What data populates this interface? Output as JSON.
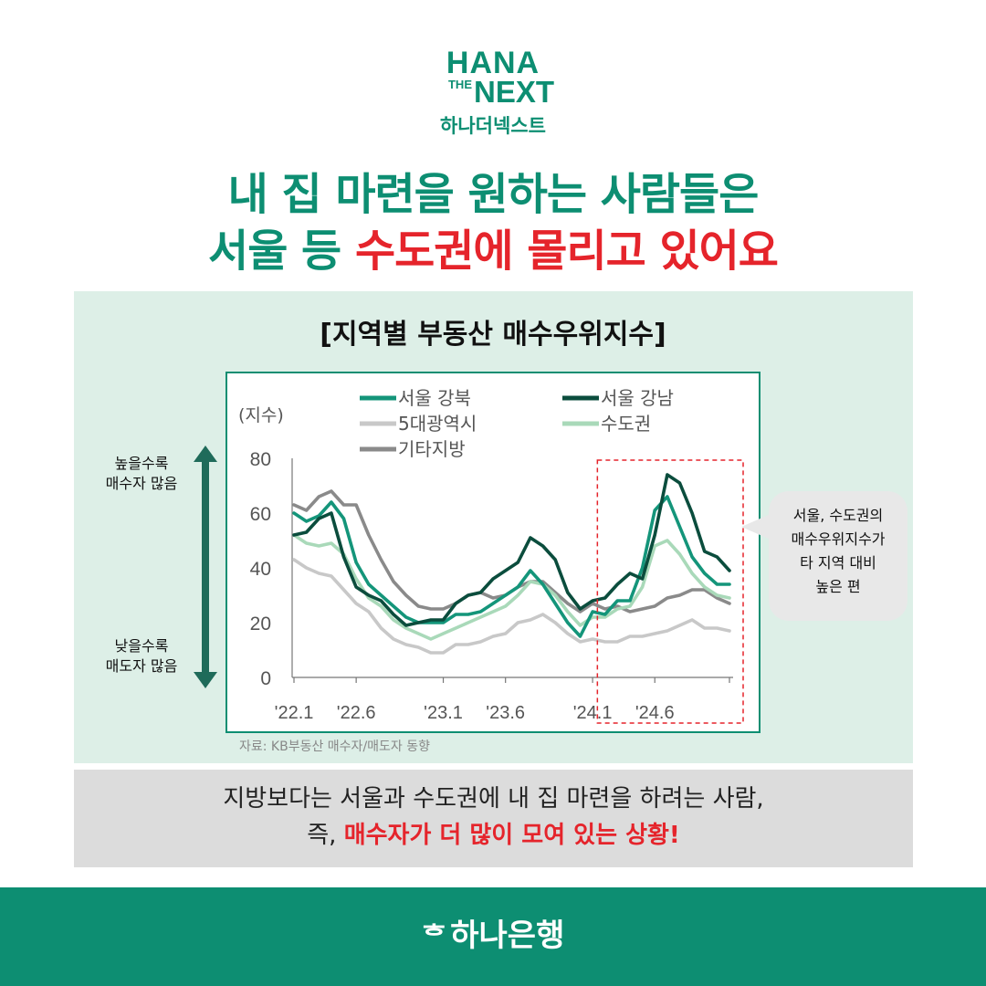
{
  "logo": {
    "line1": "HANA",
    "line2_small": "THE",
    "line2": "NEXT",
    "line3": "하나더넥스트"
  },
  "headline": {
    "line1": "내 집 마련을 원하는 사람들은",
    "line2_prefix": "서울 등 ",
    "line2_highlight": "수도권에 몰리고 있어요"
  },
  "chart_title": "[지역별 부동산 매수우위지수]",
  "side": {
    "top": [
      "높을수록",
      "매수자 많음"
    ],
    "bottom": [
      "낮을수록",
      "매도자 많음"
    ]
  },
  "bubble": [
    "서울, 수도권의",
    "매수우위지수가",
    "타 지역 대비",
    "높은 편"
  ],
  "source": "자료: KB부동산 매수자/매도자 동향",
  "summary": {
    "line1": "지방보다는 서울과 수도권에 내 집 마련을 하려는 사람,",
    "line2_prefix": "즉, ",
    "line2_highlight": "매수자가 더 많이 모여 있는 상황!"
  },
  "footer": {
    "brand_mark": "ᄒ",
    "brand": "하나은행"
  },
  "colors": {
    "brand_green": "#0d8e72",
    "red": "#e5242b",
    "seoul_gangbuk": "#14957a",
    "seoul_gangnam": "#0b4d3d",
    "metro5": "#c8c8c8",
    "capital": "#a9d9b9",
    "others": "#8a8a8a"
  },
  "chart_data": {
    "type": "line",
    "ylabel": "(지수)",
    "ylim": [
      0,
      80
    ],
    "yticks": [
      0,
      20,
      40,
      60,
      80
    ],
    "x": [
      "'22.1",
      "'22.2",
      "'22.3",
      "'22.4",
      "'22.5",
      "'22.6",
      "'22.7",
      "'22.8",
      "'22.9",
      "'22.10",
      "'22.11",
      "'22.12",
      "'23.1",
      "'23.2",
      "'23.3",
      "'23.4",
      "'23.5",
      "'23.6",
      "'23.7",
      "'23.8",
      "'23.9",
      "'23.10",
      "'23.11",
      "'23.12",
      "'24.1",
      "'24.2",
      "'24.3",
      "'24.4",
      "'24.5",
      "'24.6",
      "'24.7",
      "'24.8",
      "'24.9",
      "'24.10",
      "'24.11",
      "'24.12"
    ],
    "xtick_labels": [
      "'22.1",
      "'22.6",
      "'23.1",
      "'23.6",
      "'24.1",
      "'24.6"
    ],
    "xtick_indices": [
      0,
      5,
      12,
      17,
      24,
      29
    ],
    "legend": [
      "서울 강북",
      "서울 강남",
      "5대광역시",
      "수도권",
      "기타지방"
    ],
    "highlight_range": [
      "'24.3",
      "'24.12"
    ],
    "series": [
      {
        "name": "서울 강북",
        "color": "#14957a",
        "width": 3.6,
        "values": [
          60,
          57,
          59,
          64,
          58,
          42,
          34,
          30,
          26,
          22,
          20,
          20,
          20,
          23,
          23,
          24,
          27,
          30,
          33,
          39,
          34,
          27,
          20,
          15,
          24,
          23,
          28,
          28,
          40,
          61,
          66,
          55,
          44,
          38,
          34,
          34
        ]
      },
      {
        "name": "서울 강남",
        "color": "#0b4d3d",
        "width": 3.6,
        "values": [
          52,
          53,
          58,
          60,
          44,
          33,
          30,
          28,
          23,
          19,
          20,
          21,
          21,
          27,
          30,
          31,
          36,
          39,
          42,
          51,
          48,
          43,
          31,
          25,
          28,
          29,
          34,
          38,
          36,
          52,
          74,
          71,
          60,
          46,
          44,
          39
        ]
      },
      {
        "name": "5대광역시",
        "color": "#c8c8c8",
        "width": 3.6,
        "values": [
          43,
          40,
          38,
          37,
          32,
          27,
          24,
          18,
          14,
          12,
          11,
          9,
          9,
          12,
          12,
          13,
          15,
          16,
          20,
          21,
          23,
          20,
          16,
          13,
          14,
          13,
          13,
          15,
          15,
          16,
          17,
          19,
          21,
          18,
          18,
          17
        ]
      },
      {
        "name": "수도권",
        "color": "#a9d9b9",
        "width": 3.6,
        "values": [
          52,
          49,
          48,
          49,
          45,
          36,
          29,
          26,
          21,
          18,
          16,
          14,
          16,
          18,
          20,
          22,
          24,
          26,
          30,
          35,
          34,
          30,
          24,
          19,
          22,
          22,
          25,
          26,
          33,
          48,
          50,
          45,
          38,
          33,
          30,
          29
        ]
      },
      {
        "name": "기타지방",
        "color": "#8a8a8a",
        "width": 3.6,
        "values": [
          63,
          61,
          66,
          68,
          63,
          63,
          52,
          43,
          35,
          30,
          26,
          25,
          25,
          27,
          30,
          31,
          29,
          30,
          33,
          35,
          35,
          31,
          27,
          24,
          27,
          25,
          26,
          24,
          25,
          26,
          29,
          30,
          32,
          32,
          29,
          27
        ]
      }
    ]
  }
}
